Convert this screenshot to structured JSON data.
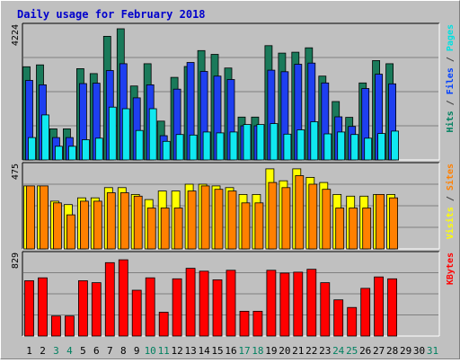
{
  "chart_data": {
    "type": "bar",
    "title": "Daily usage for February 2018",
    "categories": [
      "1",
      "2",
      "3",
      "4",
      "5",
      "6",
      "7",
      "8",
      "9",
      "10",
      "11",
      "12",
      "13",
      "14",
      "15",
      "16",
      "17",
      "18",
      "19",
      "20",
      "21",
      "22",
      "23",
      "24",
      "25",
      "26",
      "27",
      "28",
      "29",
      "30",
      "31"
    ],
    "weekend_days": [
      "3",
      "4",
      "10",
      "11",
      "17",
      "18",
      "24",
      "25",
      "31"
    ],
    "panels": [
      {
        "id": "top",
        "ymax_label": "4224",
        "ymax": 4224,
        "right_labels": [
          {
            "text": "Pages",
            "color": "#00e0e0"
          },
          {
            "text": " / ",
            "color": "#404040"
          },
          {
            "text": "Files",
            "color": "#0040ff"
          },
          {
            "text": " / ",
            "color": "#404040"
          },
          {
            "text": "Hits",
            "color": "#008060"
          }
        ],
        "series": [
          {
            "name": "Hits",
            "color": "#1a7a5a",
            "values": [
              3000,
              3060,
              1000,
              1000,
              2940,
              2780,
              3980,
              4224,
              2380,
              3100,
              1250,
              2660,
              3010,
              3520,
              3400,
              2960,
              1380,
              1380,
              3680,
              3440,
              3470,
              3610,
              2700,
              1880,
              1370,
              2480,
              3200,
              3100,
              0,
              0,
              0
            ]
          },
          {
            "name": "Files",
            "color": "#1e3ff0",
            "values": [
              2560,
              2420,
              720,
              720,
              2460,
              2470,
              2880,
              3100,
              2000,
              2420,
              780,
              2280,
              3140,
              2850,
              2700,
              2590,
              1100,
              1100,
              2890,
              2840,
              3080,
              3120,
              2480,
              1390,
              1080,
              2300,
              2760,
              2450,
              0,
              0,
              0
            ]
          },
          {
            "name": "Pages",
            "color": "#10e8f0",
            "values": [
              720,
              1450,
              440,
              440,
              650,
              700,
              1700,
              1650,
              950,
              1650,
              600,
              820,
              800,
              900,
              870,
              900,
              1140,
              1140,
              1170,
              830,
              970,
              1230,
              840,
              900,
              820,
              700,
              850,
              930,
              0,
              0,
              0
            ]
          }
        ]
      },
      {
        "id": "middle",
        "ymax_label": "475",
        "ymax": 475,
        "right_labels": [
          {
            "text": "Sites",
            "color": "#ff8000"
          },
          {
            "text": " / ",
            "color": "#404040"
          },
          {
            "text": "Visits",
            "color": "#ffff00"
          }
        ],
        "series": [
          {
            "name": "Visits",
            "color": "#ffff00",
            "values": [
              370,
              370,
              280,
              260,
              300,
              300,
              360,
              360,
              320,
              290,
              340,
              340,
              380,
              380,
              370,
              360,
              320,
              320,
              470,
              400,
              470,
              420,
              390,
              320,
              310,
              310,
              320,
              320,
              0,
              0,
              0
            ]
          },
          {
            "name": "Sites",
            "color": "#ff8000",
            "values": [
              370,
              370,
              270,
              200,
              280,
              280,
              330,
              330,
              310,
              240,
              240,
              240,
              340,
              370,
              350,
              340,
              270,
              270,
              390,
              360,
              430,
              380,
              350,
              240,
              240,
              240,
              320,
              300,
              0,
              0,
              0
            ]
          }
        ]
      },
      {
        "id": "bottom",
        "ymax_label": "829",
        "ymax": 829,
        "right_labels": [
          {
            "text": "KBytes",
            "color": "#ff0000"
          }
        ],
        "series": [
          {
            "name": "KBytes",
            "color": "#ff0000",
            "values": [
              580,
              610,
              210,
              210,
              580,
              560,
              770,
              800,
              480,
              610,
              250,
              600,
              710,
              680,
              590,
              690,
              260,
              260,
              690,
              660,
              670,
              700,
              560,
              380,
              300,
              500,
              620,
              600,
              0,
              0,
              0
            ]
          }
        ]
      }
    ]
  }
}
